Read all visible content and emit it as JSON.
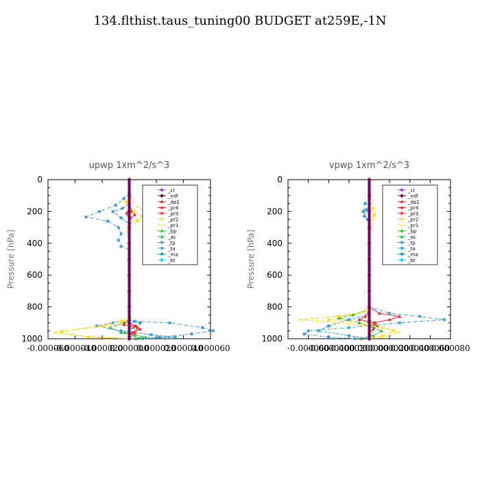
{
  "figure_title": "134.flthist.taus_tuning00  BUDGET at259E,-1N",
  "colors": {
    "cl": "#9b30ff",
    "mfl": "#7a0060",
    "dp1": "#ff2020",
    "pr4": "#ff2020",
    "pr3": "#ff2020",
    "pr2": "#ffd700",
    "pr1": "#ffd700",
    "bp": "#22bb22",
    "ac": "#22bb22",
    "tp": "#1e90cc",
    "ta": "#1e90cc",
    "ma": "#1e90cc",
    "bt": "#00e5ee"
  },
  "chart_data": [
    {
      "type": "line",
      "title": "upwp   1xm^2/s^3",
      "ylabel": "Pressure [hPa]",
      "xlabel": "",
      "ylim": [
        1000,
        0
      ],
      "xlim": [
        -6e-05,
        6e-05
      ],
      "y_ticks": [
        "0",
        "200",
        "400",
        "600",
        "800",
        "1000"
      ],
      "x_ticks": [
        "-0.000060",
        "-0.000040",
        "-0.000020",
        "0.000000",
        "0.000020",
        "0.000040",
        "0.000060"
      ],
      "legend": [
        "_cl",
        "_mfl",
        "_dp1",
        "_pr4",
        "_pr3",
        "_pr2",
        "_pr1",
        "_bp",
        "_ac",
        "_tp",
        "_ta",
        "_ma",
        "_bt"
      ],
      "legend_placement": "top-right",
      "series": [
        {
          "name": "_pr1",
          "points": [
            [
              0,
              0
            ],
            [
              0,
              80
            ],
            [
              2e-06,
              120
            ],
            [
              4e-06,
              160
            ],
            [
              1.2e-05,
              200
            ],
            [
              8e-06,
              240
            ],
            [
              0,
              280
            ],
            [
              -2e-06,
              320
            ],
            [
              0,
              380
            ],
            [
              0,
              420
            ],
            [
              0,
              850
            ],
            [
              2e-06,
              870
            ],
            [
              -1e-05,
              910
            ],
            [
              -3e-05,
              930
            ],
            [
              -5.6e-05,
              960
            ],
            [
              -4e-05,
              980
            ],
            [
              0,
              1000
            ]
          ]
        },
        {
          "name": "_pr2",
          "points": [
            [
              0,
              0
            ],
            [
              0,
              100
            ],
            [
              -2e-06,
              140
            ],
            [
              3e-06,
              200
            ],
            [
              1e-05,
              230
            ],
            [
              6e-06,
              260
            ],
            [
              0,
              300
            ],
            [
              0,
              860
            ],
            [
              -6e-06,
              890
            ],
            [
              -2e-05,
              920
            ],
            [
              -5e-05,
              955
            ],
            [
              -3e-05,
              990
            ],
            [
              0,
              1000
            ]
          ]
        },
        {
          "name": "_pr4",
          "points": [
            [
              0,
              0
            ],
            [
              0,
              150
            ],
            [
              2e-06,
              200
            ],
            [
              4e-06,
              220
            ],
            [
              1e-06,
              240
            ],
            [
              0,
              260
            ],
            [
              0,
              900
            ],
            [
              5e-06,
              920
            ],
            [
              8e-06,
              940
            ],
            [
              2e-06,
              960
            ],
            [
              0,
              980
            ],
            [
              0,
              1000
            ]
          ]
        },
        {
          "name": "_dp1",
          "points": [
            [
              0,
              0
            ],
            [
              0,
              180
            ],
            [
              -2e-06,
              210
            ],
            [
              0,
              250
            ],
            [
              0,
              880
            ],
            [
              -4e-06,
              910
            ],
            [
              6e-06,
              930
            ],
            [
              4e-06,
              960
            ],
            [
              0,
              1000
            ]
          ]
        },
        {
          "name": "_bp",
          "points": [
            [
              0,
              0
            ],
            [
              0,
              880
            ],
            [
              -4e-06,
              900
            ],
            [
              -1.4e-05,
              930
            ],
            [
              -6e-06,
              960
            ],
            [
              4e-06,
              975
            ],
            [
              1.2e-05,
              990
            ],
            [
              5e-06,
              1000
            ]
          ]
        },
        {
          "name": "_ac",
          "points": [
            [
              0,
              0
            ],
            [
              0,
              900
            ],
            [
              3e-06,
              930
            ],
            [
              -3e-06,
              960
            ],
            [
              0,
              980
            ],
            [
              8e-06,
              995
            ]
          ]
        },
        {
          "name": "_tp",
          "points": [
            [
              0,
              0
            ],
            [
              0,
              80
            ],
            [
              -4e-06,
              120
            ],
            [
              -1e-05,
              160
            ],
            [
              -2.2e-05,
              200
            ],
            [
              -3.2e-05,
              235
            ],
            [
              -1.6e-05,
              260
            ],
            [
              -8e-06,
              300
            ],
            [
              -6e-06,
              340
            ],
            [
              -8e-06,
              380
            ],
            [
              -6e-06,
              420
            ],
            [
              0,
              440
            ],
            [
              0,
              880
            ],
            [
              4e-06,
              890
            ],
            [
              3e-05,
              900
            ],
            [
              5.4e-05,
              930
            ],
            [
              6.2e-05,
              950
            ],
            [
              4.6e-05,
              970
            ],
            [
              2.2e-05,
              990
            ],
            [
              0,
              1000
            ]
          ]
        },
        {
          "name": "_ta",
          "points": [
            [
              0,
              0
            ],
            [
              0,
              150
            ],
            [
              -5e-06,
              180
            ],
            [
              -1.2e-05,
              200
            ],
            [
              -6e-06,
              240
            ],
            [
              0,
              280
            ],
            [
              0,
              880
            ],
            [
              -1.2e-05,
              900
            ],
            [
              -2.4e-05,
              920
            ],
            [
              -6e-06,
              950
            ],
            [
              1.6e-05,
              975
            ],
            [
              3.4e-05,
              990
            ],
            [
              1e-05,
              1000
            ]
          ]
        },
        {
          "name": "_ma",
          "points": [
            [
              0,
              0
            ],
            [
              0,
              890
            ],
            [
              8e-06,
              900
            ],
            [
              4e-06,
              920
            ],
            [
              0,
              940
            ],
            [
              0,
              1000
            ]
          ]
        },
        {
          "name": "_mfl",
          "points": [
            [
              0,
              0
            ],
            [
              0,
              100
            ],
            [
              0,
              200
            ],
            [
              0,
              300
            ],
            [
              0,
              400
            ],
            [
              0,
              500
            ],
            [
              0,
              600
            ],
            [
              0,
              700
            ],
            [
              0,
              800
            ],
            [
              0,
              900
            ],
            [
              0,
              1000
            ]
          ]
        },
        {
          "name": "_cl",
          "points": [
            [
              0,
              0
            ],
            [
              0,
              1000
            ]
          ]
        },
        {
          "name": "_bt",
          "points": [
            [
              0,
              0
            ],
            [
              0,
              1000
            ]
          ]
        }
      ]
    },
    {
      "type": "line",
      "title": "vpwp   1xm^2/s^3",
      "ylabel": "Pressure [hPa]",
      "xlabel": "",
      "ylim": [
        1000,
        0
      ],
      "xlim": [
        -8e-05,
        8e-05
      ],
      "y_ticks": [
        "0",
        "200",
        "400",
        "600",
        "800",
        "1000"
      ],
      "x_ticks": [
        "-0.000060",
        "-0.000040",
        "-0.000020",
        "0.000000",
        "0.000020",
        "0.000040",
        "0.000060",
        "0.000080"
      ],
      "legend": [
        "_cl",
        "_mfl",
        "_dp1",
        "_pr4",
        "_pr3",
        "_pr2",
        "_pr1",
        "_bp",
        "_ac",
        "_tp",
        "_ta",
        "_ma",
        "_bt"
      ],
      "legend_placement": "top-right",
      "series": [
        {
          "name": "_pr1",
          "points": [
            [
              0,
              0
            ],
            [
              0,
              100
            ],
            [
              4e-06,
              150
            ],
            [
              6e-06,
              200
            ],
            [
              4e-06,
              260
            ],
            [
              2e-06,
              320
            ],
            [
              0,
              380
            ],
            [
              0,
              800
            ],
            [
              -1e-05,
              840
            ],
            [
              -5e-05,
              870
            ],
            [
              -7e-05,
              880
            ],
            [
              -3e-05,
              900
            ],
            [
              0,
              920
            ],
            [
              2e-05,
              940
            ],
            [
              3e-05,
              960
            ],
            [
              1.8e-05,
              980
            ],
            [
              0,
              1000
            ]
          ]
        },
        {
          "name": "_pr2",
          "points": [
            [
              0,
              0
            ],
            [
              0,
              120
            ],
            [
              3e-06,
              180
            ],
            [
              5e-06,
              220
            ],
            [
              0,
              280
            ],
            [
              0,
              820
            ],
            [
              -3e-05,
              860
            ],
            [
              -4e-05,
              880
            ],
            [
              2e-06,
              900
            ],
            [
              2.4e-05,
              950
            ],
            [
              1.2e-05,
              985
            ],
            [
              0,
              1000
            ]
          ]
        },
        {
          "name": "_pr4",
          "points": [
            [
              0,
              0
            ],
            [
              0,
              800
            ],
            [
              1e-05,
              840
            ],
            [
              3e-05,
              860
            ],
            [
              2e-05,
              880
            ],
            [
              4e-06,
              900
            ],
            [
              8e-06,
              920
            ],
            [
              0,
              960
            ],
            [
              0,
              1000
            ]
          ]
        },
        {
          "name": "_dp1",
          "points": [
            [
              0,
              0
            ],
            [
              0,
              820
            ],
            [
              -4e-06,
              860
            ],
            [
              -1e-05,
              880
            ],
            [
              6e-06,
              900
            ],
            [
              0,
              940
            ],
            [
              0,
              1000
            ]
          ]
        },
        {
          "name": "_bp",
          "points": [
            [
              0,
              0
            ],
            [
              0,
              820
            ],
            [
              -1.6e-05,
              850
            ],
            [
              -3e-05,
              870
            ],
            [
              -1e-05,
              900
            ],
            [
              4e-06,
              930
            ],
            [
              1.2e-05,
              950
            ],
            [
              4e-06,
              980
            ],
            [
              -8e-06,
              1000
            ]
          ]
        },
        {
          "name": "_ac",
          "points": [
            [
              0,
              0
            ],
            [
              0,
              880
            ],
            [
              6e-06,
              910
            ],
            [
              4e-06,
              940
            ],
            [
              0,
              1000
            ]
          ]
        },
        {
          "name": "_tp",
          "points": [
            [
              0,
              0
            ],
            [
              0,
              120
            ],
            [
              -4e-06,
              150
            ],
            [
              -6e-06,
              200
            ],
            [
              -2e-06,
              250
            ],
            [
              0,
              280
            ],
            [
              0,
              800
            ],
            [
              2e-05,
              840
            ],
            [
              5e-05,
              860
            ],
            [
              7.4e-05,
              880
            ],
            [
              3e-05,
              900
            ],
            [
              -2e-05,
              930
            ],
            [
              -6e-05,
              950
            ],
            [
              -6.4e-05,
              970
            ],
            [
              -4e-05,
              990
            ],
            [
              -1.4e-05,
              1000
            ]
          ]
        },
        {
          "name": "_ta",
          "points": [
            [
              0,
              0
            ],
            [
              0,
              150
            ],
            [
              -3e-06,
              190
            ],
            [
              -5e-06,
              230
            ],
            [
              0,
              260
            ],
            [
              0,
              850
            ],
            [
              -2e-05,
              880
            ],
            [
              -4e-05,
              920
            ],
            [
              -5e-05,
              950
            ],
            [
              -2e-05,
              980
            ],
            [
              0,
              1000
            ]
          ]
        },
        {
          "name": "_ma",
          "points": [
            [
              0,
              0
            ],
            [
              0,
              880
            ],
            [
              6e-06,
              900
            ],
            [
              0,
              920
            ],
            [
              0,
              1000
            ]
          ]
        },
        {
          "name": "_mfl",
          "points": [
            [
              0,
              0
            ],
            [
              0,
              100
            ],
            [
              0,
              200
            ],
            [
              0,
              300
            ],
            [
              0,
              400
            ],
            [
              0,
              500
            ],
            [
              0,
              600
            ],
            [
              0,
              700
            ],
            [
              0,
              800
            ],
            [
              0,
              900
            ],
            [
              0,
              1000
            ]
          ]
        },
        {
          "name": "_cl",
          "points": [
            [
              0,
              0
            ],
            [
              0,
              1000
            ]
          ]
        },
        {
          "name": "_bt",
          "points": [
            [
              0,
              0
            ],
            [
              0,
              1000
            ]
          ]
        }
      ]
    }
  ]
}
